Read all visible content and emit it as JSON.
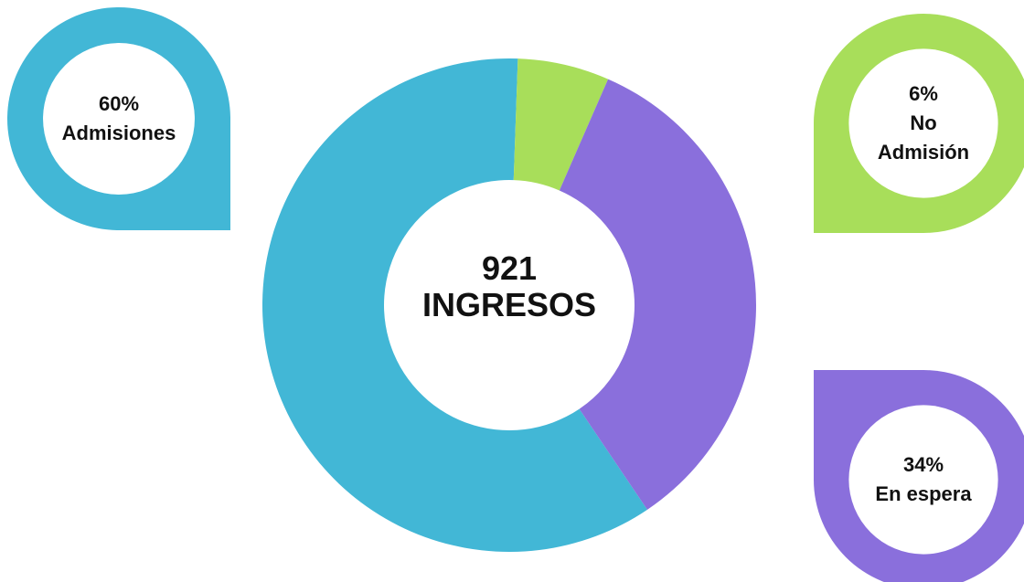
{
  "chart_data": {
    "type": "donut",
    "categories": [
      "Admisiones",
      "No Admisión",
      "En espera"
    ],
    "values": [
      60,
      6,
      34
    ],
    "value_labels": [
      "60%",
      "6%",
      "34%"
    ],
    "colors": [
      "#42b7d6",
      "#a8de5a",
      "#8a6fdc"
    ],
    "total": 921,
    "total_label": "INGRESOS"
  }
}
